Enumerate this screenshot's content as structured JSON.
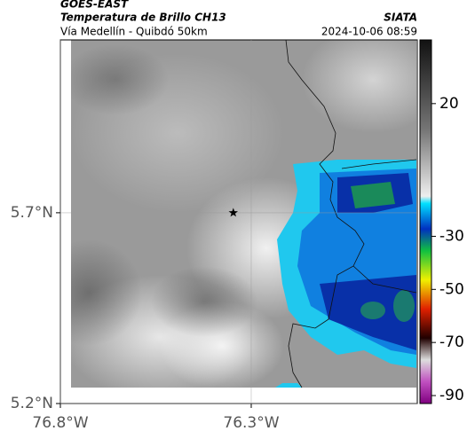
{
  "chart_data": {
    "type": "map",
    "title": "GOES-EAST",
    "subtitle": "Temperatura de Brillo CH13",
    "region": "Vía Medellín - Quibdó 50km",
    "source": "SIATA",
    "timestamp": "2024-10-06 08:59",
    "xlim": [
      -76.8,
      -75.865
    ],
    "ylim": [
      5.2,
      6.153
    ],
    "xticks": [
      {
        "value": -76.8,
        "label": "76.8°W"
      },
      {
        "value": -76.3,
        "label": "76.3°W"
      }
    ],
    "yticks": [
      {
        "value": 5.2,
        "label": "5.2°N"
      },
      {
        "value": 5.7,
        "label": "5.7°N"
      }
    ],
    "grid": true,
    "marker": {
      "lon": -76.347,
      "lat": 5.7
    },
    "colorbar": {
      "lim": [
        44,
        -93
      ],
      "ticks": [
        20,
        -30,
        -50,
        -70,
        -90
      ]
    }
  }
}
